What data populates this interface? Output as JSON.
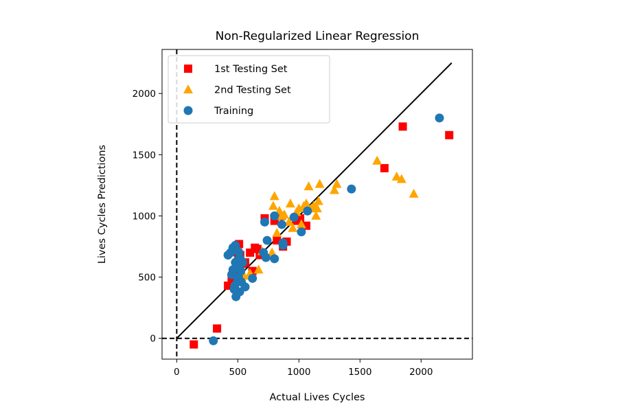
{
  "chart_data": {
    "type": "scatter",
    "title": "Non-Regularized Linear Regression",
    "xlabel": "Actual Lives Cycles",
    "ylabel": "Lives Cycles Predictions",
    "xlim": [
      -120,
      2420
    ],
    "ylim": [
      -170,
      2360
    ],
    "xticks": [
      0,
      500,
      1000,
      1500,
      2000
    ],
    "yticks": [
      0,
      500,
      1000,
      1500,
      2000
    ],
    "grid": false,
    "legend_position": "upper-left",
    "identity_line": {
      "from": [
        0,
        0
      ],
      "to": [
        2250,
        2250
      ],
      "color": "#000000"
    },
    "reference_lines": [
      {
        "orientation": "vertical",
        "value": 0,
        "style": "dashed",
        "color": "#000000"
      },
      {
        "orientation": "horizontal",
        "value": 0,
        "style": "dashed",
        "color": "#000000"
      }
    ],
    "series": [
      {
        "name": "1st Testing Set",
        "marker": "square",
        "color": "#ff0000",
        "points": [
          [
            140,
            -50
          ],
          [
            330,
            80
          ],
          [
            420,
            430
          ],
          [
            450,
            480
          ],
          [
            470,
            520
          ],
          [
            480,
            560
          ],
          [
            500,
            700
          ],
          [
            510,
            770
          ],
          [
            520,
            680
          ],
          [
            540,
            610
          ],
          [
            560,
            620
          ],
          [
            600,
            700
          ],
          [
            620,
            550
          ],
          [
            640,
            740
          ],
          [
            660,
            730
          ],
          [
            680,
            680
          ],
          [
            720,
            980
          ],
          [
            800,
            960
          ],
          [
            820,
            800
          ],
          [
            860,
            1000
          ],
          [
            870,
            750
          ],
          [
            900,
            790
          ],
          [
            980,
            960
          ],
          [
            1010,
            980
          ],
          [
            1060,
            920
          ],
          [
            1700,
            1390
          ],
          [
            1850,
            1730
          ],
          [
            2230,
            1660
          ]
        ]
      },
      {
        "name": "2nd Testing Set",
        "marker": "triangle",
        "color": "#ffa500",
        "points": [
          [
            520,
            520
          ],
          [
            550,
            510
          ],
          [
            600,
            530
          ],
          [
            670,
            560
          ],
          [
            700,
            710
          ],
          [
            780,
            700
          ],
          [
            790,
            1080
          ],
          [
            800,
            1160
          ],
          [
            820,
            860
          ],
          [
            840,
            1040
          ],
          [
            860,
            1000
          ],
          [
            880,
            1010
          ],
          [
            920,
            950
          ],
          [
            930,
            1100
          ],
          [
            950,
            900
          ],
          [
            980,
            1030
          ],
          [
            1000,
            1060
          ],
          [
            1020,
            930
          ],
          [
            1040,
            1080
          ],
          [
            1060,
            1100
          ],
          [
            1080,
            1240
          ],
          [
            1100,
            1060
          ],
          [
            1120,
            1080
          ],
          [
            1140,
            1000
          ],
          [
            1150,
            1060
          ],
          [
            1160,
            1120
          ],
          [
            1170,
            1260
          ],
          [
            1290,
            1210
          ],
          [
            1310,
            1260
          ],
          [
            1640,
            1450
          ],
          [
            1800,
            1320
          ],
          [
            1840,
            1300
          ],
          [
            1940,
            1180
          ]
        ]
      },
      {
        "name": "Training",
        "marker": "circle",
        "color": "#1f77b4",
        "points": [
          [
            300,
            -20
          ],
          [
            420,
            680
          ],
          [
            440,
            700
          ],
          [
            450,
            520
          ],
          [
            460,
            560
          ],
          [
            460,
            740
          ],
          [
            470,
            400
          ],
          [
            475,
            430
          ],
          [
            480,
            620
          ],
          [
            480,
            760
          ],
          [
            485,
            340
          ],
          [
            490,
            720
          ],
          [
            495,
            600
          ],
          [
            500,
            640
          ],
          [
            500,
            470
          ],
          [
            505,
            500
          ],
          [
            510,
            700
          ],
          [
            515,
            380
          ],
          [
            520,
            650
          ],
          [
            525,
            550
          ],
          [
            530,
            460
          ],
          [
            540,
            620
          ],
          [
            560,
            420
          ],
          [
            620,
            490
          ],
          [
            710,
            700
          ],
          [
            720,
            950
          ],
          [
            730,
            660
          ],
          [
            740,
            800
          ],
          [
            800,
            650
          ],
          [
            800,
            1000
          ],
          [
            860,
            930
          ],
          [
            870,
            780
          ],
          [
            870,
            760
          ],
          [
            960,
            990
          ],
          [
            1020,
            870
          ],
          [
            1070,
            1040
          ],
          [
            1430,
            1220
          ],
          [
            2150,
            1800
          ]
        ]
      }
    ]
  }
}
